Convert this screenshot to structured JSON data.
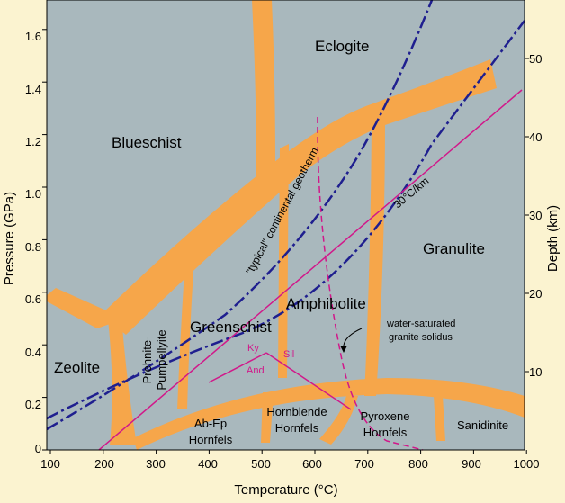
{
  "diagram": {
    "x_axis": {
      "label": "Temperature (°C)",
      "ticks": [
        "100",
        "200",
        "300",
        "400",
        "500",
        "600",
        "700",
        "800",
        "900",
        "1000"
      ]
    },
    "y_axis_left": {
      "label": "Pressure (GPa)",
      "ticks": [
        "0",
        "0.2",
        "0.4",
        "0.6",
        "0.8",
        "1.0",
        "1.2",
        "1.4",
        "1.6"
      ]
    },
    "y_axis_right": {
      "label": "Depth (km)",
      "ticks": [
        "10",
        "20",
        "30",
        "40",
        "50"
      ]
    },
    "facies": {
      "eclogite": "Eclogite",
      "blueschist": "Blueschist",
      "granulite": "Granulite",
      "amphibolite": "Amphibolite",
      "greenschist": "Greenschist",
      "zeolite": "Zeolite",
      "prehnite_1": "Prehnite-",
      "prehnite_2": "Pumpellyite",
      "abep_1": "Ab-Ep",
      "abep_2": "Hornfels",
      "hornblende_1": "Hornblende",
      "hornblende_2": "Hornfels",
      "pyroxene_1": "Pyroxene",
      "pyroxene_2": "Hornfels",
      "sanidinite": "Sanidinite"
    },
    "annotations": {
      "geotherm": "\"typical\" continental geotherm",
      "gradient": "30°C/km",
      "solidus_1": "water-saturated",
      "solidus_2": "granite solidus",
      "ky": "Ky",
      "sil": "Sil",
      "and": "And"
    },
    "colors": {
      "background": "#fbf3d0",
      "plot": "#a9b8bd",
      "facies_boundary": "#f6a64a",
      "geotherm": "#1f1f8f",
      "aluminosilicate": "#d1188a"
    }
  }
}
